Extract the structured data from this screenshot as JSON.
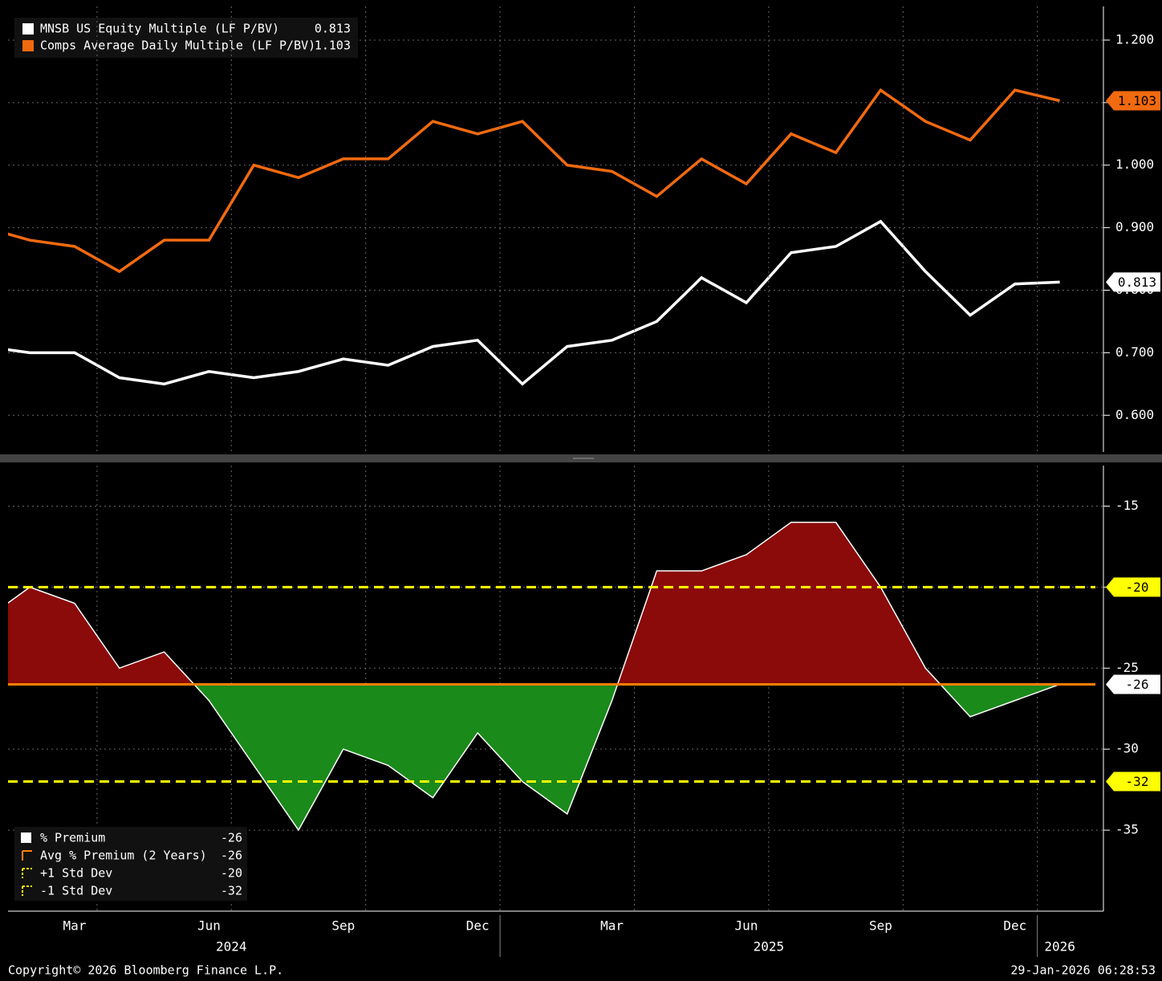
{
  "chart_data": [
    {
      "type": "line",
      "x": [
        "2024-01",
        "2024-02",
        "2024-03",
        "2024-04",
        "2024-05",
        "2024-06",
        "2024-07",
        "2024-08",
        "2024-09",
        "2024-10",
        "2024-11",
        "2024-12",
        "2025-01",
        "2025-02",
        "2025-03",
        "2025-04",
        "2025-05",
        "2025-06",
        "2025-07",
        "2025-08",
        "2025-09",
        "2025-10",
        "2025-11",
        "2025-12",
        "2026-01"
      ],
      "series": [
        {
          "name": "MNSB US Equity Multiple (LF P/BV)",
          "color": "#ffffff",
          "values": [
            0.71,
            0.7,
            0.7,
            0.66,
            0.65,
            0.67,
            0.66,
            0.67,
            0.69,
            0.68,
            0.71,
            0.72,
            0.65,
            0.71,
            0.72,
            0.75,
            0.82,
            0.78,
            0.86,
            0.87,
            0.91,
            0.83,
            0.76,
            0.81,
            0.813
          ]
        },
        {
          "name": "Comps Average Daily Multiple (LF P/BV)",
          "color": "#f26a0f",
          "values": [
            0.9,
            0.88,
            0.87,
            0.83,
            0.88,
            0.88,
            1.0,
            0.98,
            1.01,
            1.01,
            1.07,
            1.05,
            1.07,
            1.0,
            0.99,
            0.95,
            1.01,
            0.97,
            1.05,
            1.02,
            1.12,
            1.07,
            1.04,
            1.12,
            1.103
          ]
        }
      ],
      "ylim": [
        0.54,
        1.25
      ],
      "yticks": [
        {
          "value": 0.6,
          "label": "0.600"
        },
        {
          "value": 0.7,
          "label": "0.700"
        },
        {
          "value": 0.8,
          "label": "0.800"
        },
        {
          "value": 0.9,
          "label": "0.900"
        },
        {
          "value": 1.0,
          "label": "1.000"
        },
        {
          "value": 1.1,
          "label": "1.100"
        },
        {
          "value": 1.2,
          "label": "1.200"
        }
      ],
      "grid": true,
      "legend": "upper left"
    },
    {
      "type": "area",
      "x": [
        "2024-01",
        "2024-02",
        "2024-03",
        "2024-04",
        "2024-05",
        "2024-06",
        "2024-07",
        "2024-08",
        "2024-09",
        "2024-10",
        "2024-11",
        "2024-12",
        "2025-01",
        "2025-02",
        "2025-03",
        "2025-04",
        "2025-05",
        "2025-06",
        "2025-07",
        "2025-08",
        "2025-09",
        "2025-10",
        "2025-11",
        "2025-12",
        "2026-01"
      ],
      "series": [
        {
          "name": "% Premium",
          "color": "#ffffff",
          "values": [
            -22,
            -20,
            -21,
            -25,
            -24,
            -27,
            -31,
            -35,
            -30,
            -31,
            -33,
            -29,
            -32,
            -34,
            -27,
            -19,
            -19,
            -18,
            -16,
            -16,
            -20,
            -25,
            -28,
            -27,
            -26
          ]
        }
      ],
      "reference_lines": [
        {
          "name": "Avg % Premium (2 Years)",
          "value": -26,
          "color": "#ff7f00",
          "style": "solid"
        },
        {
          "name": "+1 Std Dev",
          "value": -20,
          "color": "#ffff00",
          "style": "dashed"
        },
        {
          "name": "-1 Std Dev",
          "value": -32,
          "color": "#ffff00",
          "style": "dashed"
        }
      ],
      "above_color": "#8b0a0a",
      "below_color": "#1a8a1a",
      "ylim": [
        -40,
        -12.5
      ],
      "yticks": [
        -15,
        -20,
        -25,
        -30,
        -35
      ],
      "xticks": [
        {
          "value": "2024-03",
          "label": "Mar"
        },
        {
          "value": "2024-06",
          "label": "Jun"
        },
        {
          "value": "2024-09",
          "label": "Sep"
        },
        {
          "value": "2024-12",
          "label": "Dec"
        },
        {
          "value": "2025-03",
          "label": "Mar"
        },
        {
          "value": "2025-06",
          "label": "Jun"
        },
        {
          "value": "2025-09",
          "label": "Sep"
        },
        {
          "value": "2025-12",
          "label": "Dec"
        }
      ],
      "years": [
        "2024",
        "2025",
        "2026"
      ],
      "grid": true,
      "legend": "lower left"
    }
  ],
  "footer": {
    "copyright": "Copyright© 2026 Bloomberg Finance L.P.",
    "timestamp": "29-Jan-2026 06:28:53"
  }
}
